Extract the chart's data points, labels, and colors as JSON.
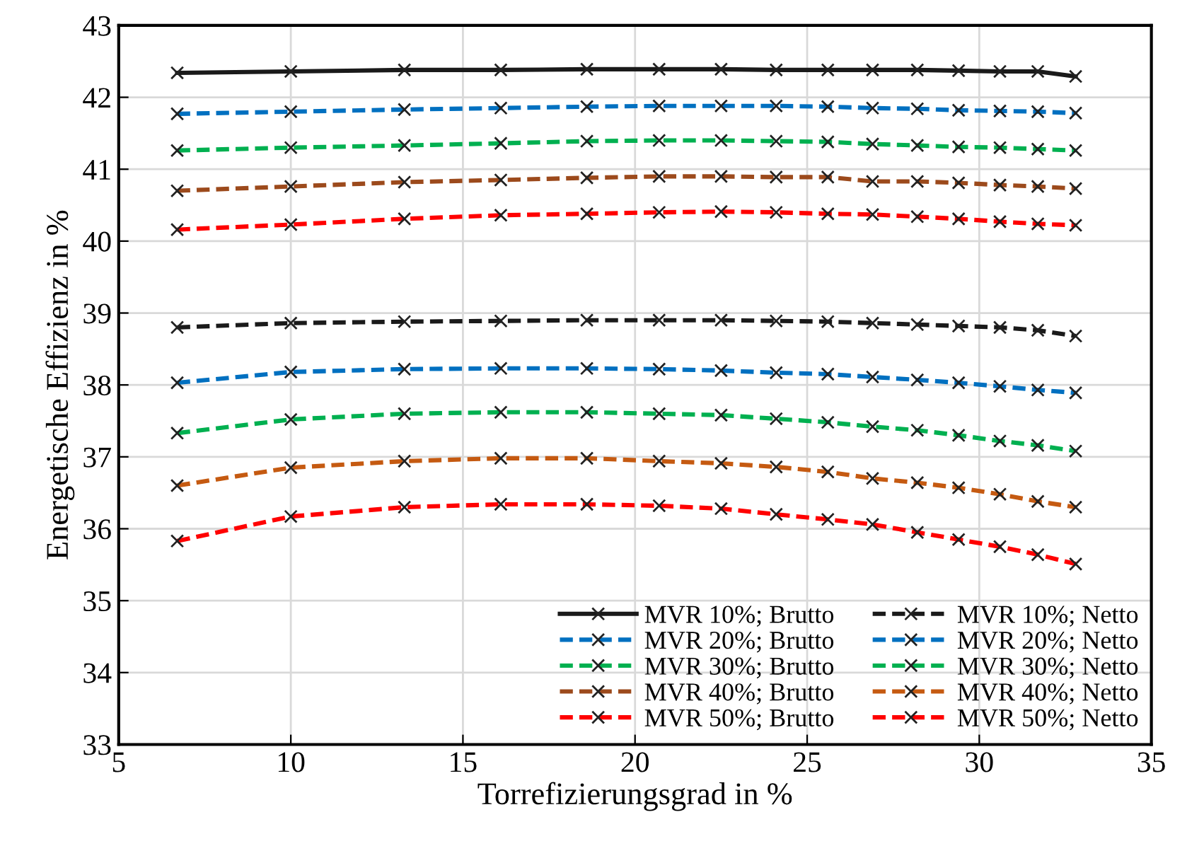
{
  "chart_data": {
    "type": "line",
    "xlabel": "Torrefizierungsgrad in %",
    "ylabel": "Energetische Effizienz in %",
    "x": [
      6.7,
      10,
      13.3,
      16.1,
      18.6,
      20.7,
      22.5,
      24.1,
      25.6,
      26.9,
      28.2,
      29.4,
      30.6,
      31.7,
      32.8
    ],
    "xlim": [
      5,
      35
    ],
    "xticks": [
      5,
      10,
      15,
      20,
      25,
      30,
      35
    ],
    "ylim": [
      33,
      43
    ],
    "yticks": [
      33,
      34,
      35,
      36,
      37,
      38,
      39,
      40,
      41,
      42,
      43
    ],
    "grid": true,
    "legend": "bottom right",
    "marker": "cross",
    "series": [
      {
        "name": "MVR 10%; Brutto",
        "color": "#1a1a1a",
        "line_style": "solid",
        "values": [
          42.34,
          42.36,
          42.38,
          42.38,
          42.39,
          42.39,
          42.39,
          42.38,
          42.38,
          42.38,
          42.38,
          42.37,
          42.36,
          42.36,
          42.29
        ]
      },
      {
        "name": "MVR 20%; Brutto",
        "color": "#0070c0",
        "line_style": "dashed",
        "values": [
          41.77,
          41.8,
          41.83,
          41.85,
          41.87,
          41.88,
          41.88,
          41.88,
          41.87,
          41.85,
          41.84,
          41.82,
          41.81,
          41.8,
          41.78
        ]
      },
      {
        "name": "MVR 30%; Brutto",
        "color": "#00b050",
        "line_style": "dashed",
        "values": [
          41.26,
          41.3,
          41.33,
          41.36,
          41.39,
          41.4,
          41.4,
          41.39,
          41.38,
          41.35,
          41.33,
          41.31,
          41.3,
          41.28,
          41.26
        ]
      },
      {
        "name": "MVR 40%; Brutto",
        "color": "#9c4a1c",
        "line_style": "dashed",
        "values": [
          40.7,
          40.76,
          40.82,
          40.85,
          40.88,
          40.9,
          40.9,
          40.89,
          40.89,
          40.83,
          40.83,
          40.81,
          40.78,
          40.76,
          40.73
        ]
      },
      {
        "name": "MVR 50%; Brutto",
        "color": "#ff0000",
        "line_style": "dashed",
        "values": [
          40.16,
          40.23,
          40.31,
          40.36,
          40.38,
          40.4,
          40.41,
          40.4,
          40.38,
          40.37,
          40.34,
          40.31,
          40.27,
          40.24,
          40.22
        ]
      },
      {
        "name": "MVR 10%; Netto",
        "color": "#1a1a1a",
        "line_style": "dashed",
        "values": [
          38.8,
          38.86,
          38.88,
          38.89,
          38.9,
          38.9,
          38.9,
          38.89,
          38.88,
          38.86,
          38.84,
          38.82,
          38.8,
          38.76,
          38.68
        ]
      },
      {
        "name": "MVR 20%; Netto",
        "color": "#0070c0",
        "line_style": "dashed",
        "values": [
          38.03,
          38.18,
          38.22,
          38.23,
          38.23,
          38.22,
          38.2,
          38.17,
          38.15,
          38.11,
          38.07,
          38.03,
          37.98,
          37.93,
          37.89
        ]
      },
      {
        "name": "MVR 30%; Netto",
        "color": "#00b050",
        "line_style": "dashed",
        "values": [
          37.33,
          37.52,
          37.6,
          37.62,
          37.62,
          37.6,
          37.58,
          37.53,
          37.48,
          37.42,
          37.37,
          37.3,
          37.22,
          37.16,
          37.08
        ]
      },
      {
        "name": "MVR 40%; Netto",
        "color": "#c55a11",
        "line_style": "dashed",
        "values": [
          36.6,
          36.85,
          36.94,
          36.98,
          36.98,
          36.94,
          36.91,
          36.86,
          36.79,
          36.7,
          36.64,
          36.57,
          36.48,
          36.38,
          36.3
        ]
      },
      {
        "name": "MVR 50%; Netto",
        "color": "#ff0000",
        "line_style": "dashed",
        "values": [
          35.83,
          36.17,
          36.3,
          36.34,
          36.34,
          36.32,
          36.28,
          36.2,
          36.13,
          36.06,
          35.95,
          35.85,
          35.75,
          35.64,
          35.51
        ]
      }
    ]
  }
}
